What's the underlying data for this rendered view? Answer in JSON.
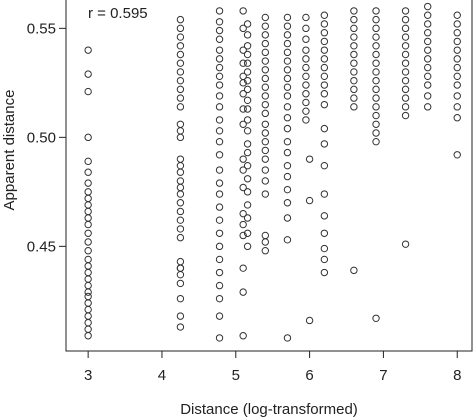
{
  "chart_data": {
    "type": "scatter",
    "title": "",
    "xlabel": "Distance (log-transformed)",
    "ylabel": "Apparent distance",
    "xlim": [
      2.7,
      8.2
    ],
    "ylim": [
      0.402,
      0.563
    ],
    "xticks": [
      3,
      4,
      5,
      6,
      7,
      8
    ],
    "yticks": [
      0.45,
      0.5,
      0.55
    ],
    "ytick_labels": [
      "0.45",
      "0.50",
      "0.55"
    ],
    "annotation": "r =  0.595",
    "grid": false,
    "series": [
      {
        "marker": "open-circle",
        "color": "#333333",
        "columns": [
          {
            "x": 3.0,
            "y": [
              0.54,
              0.529,
              0.521,
              0.5,
              0.489,
              0.484,
              0.479,
              0.475,
              0.472,
              0.469,
              0.466,
              0.463,
              0.46,
              0.456,
              0.452,
              0.448,
              0.444,
              0.441,
              0.438,
              0.435,
              0.432,
              0.429,
              0.427,
              0.424,
              0.421,
              0.418,
              0.415,
              0.412,
              0.409
            ]
          },
          {
            "x": 4.25,
            "y": [
              0.554,
              0.55,
              0.546,
              0.542,
              0.538,
              0.534,
              0.53,
              0.526,
              0.522,
              0.518,
              0.514,
              0.506,
              0.503,
              0.5,
              0.49,
              0.487,
              0.484,
              0.48,
              0.477,
              0.474,
              0.47,
              0.466,
              0.462,
              0.458,
              0.454,
              0.44,
              0.443,
              0.44,
              0.437,
              0.433,
              0.426,
              0.418,
              0.413
            ]
          },
          {
            "x": 4.78,
            "y": [
              0.558,
              0.553,
              0.549,
              0.545,
              0.54,
              0.536,
              0.532,
              0.528,
              0.524,
              0.519,
              0.514,
              0.508,
              0.503,
              0.498,
              0.492,
              0.485,
              0.479,
              0.474,
              0.468,
              0.462,
              0.456,
              0.45,
              0.444,
              0.438,
              0.432,
              0.426,
              0.418,
              0.408
            ]
          },
          {
            "x": 5.1,
            "y": [
              0.558,
              0.55,
              0.54,
              0.534,
              0.528,
              0.525,
              0.52,
              0.513,
              0.506,
              0.49,
              0.485,
              0.477,
              0.465,
              0.46,
              0.455,
              0.44,
              0.429,
              0.409
            ]
          },
          {
            "x": 5.16,
            "y": [
              0.552,
              0.547,
              0.542,
              0.538,
              0.534,
              0.53,
              0.526,
              0.522,
              0.517,
              0.513,
              0.508,
              0.503,
              0.497,
              0.493,
              0.487,
              0.481,
              0.475,
              0.469,
              0.463,
              0.456,
              0.45
            ]
          },
          {
            "x": 5.4,
            "y": [
              0.555,
              0.551,
              0.547,
              0.543,
              0.539,
              0.535,
              0.531,
              0.527,
              0.523,
              0.519,
              0.515,
              0.511,
              0.506,
              0.502,
              0.498,
              0.494,
              0.49,
              0.485,
              0.48,
              0.474,
              0.455,
              0.452,
              0.448
            ]
          },
          {
            "x": 5.7,
            "y": [
              0.555,
              0.551,
              0.547,
              0.543,
              0.539,
              0.535,
              0.531,
              0.527,
              0.523,
              0.519,
              0.514,
              0.509,
              0.504,
              0.498,
              0.493,
              0.487,
              0.482,
              0.476,
              0.47,
              0.463,
              0.453,
              0.408
            ]
          },
          {
            "x": 5.95,
            "y": [
              0.555,
              0.55,
              0.545,
              0.54,
              0.536,
              0.532,
              0.528,
              0.524,
              0.52,
              0.516,
              0.512,
              0.508
            ]
          },
          {
            "x": 6.0,
            "y": [
              0.49,
              0.471,
              0.416
            ]
          },
          {
            "x": 6.2,
            "y": [
              0.556,
              0.552,
              0.548,
              0.544,
              0.54,
              0.536,
              0.532,
              0.528,
              0.524,
              0.52,
              0.515,
              0.504,
              0.497,
              0.487,
              0.474,
              0.464,
              0.456,
              0.449,
              0.444,
              0.438
            ]
          },
          {
            "x": 6.6,
            "y": [
              0.558,
              0.554,
              0.55,
              0.546,
              0.542,
              0.538,
              0.534,
              0.53,
              0.526,
              0.522,
              0.518,
              0.514,
              0.439
            ]
          },
          {
            "x": 6.9,
            "y": [
              0.558,
              0.554,
              0.55,
              0.546,
              0.542,
              0.538,
              0.534,
              0.53,
              0.526,
              0.522,
              0.518,
              0.514,
              0.51,
              0.506,
              0.502,
              0.498,
              0.417
            ]
          },
          {
            "x": 7.3,
            "y": [
              0.558,
              0.554,
              0.55,
              0.546,
              0.542,
              0.538,
              0.534,
              0.53,
              0.526,
              0.522,
              0.518,
              0.514,
              0.51,
              0.451
            ]
          },
          {
            "x": 7.6,
            "y": [
              0.56,
              0.556,
              0.552,
              0.548,
              0.544,
              0.54,
              0.536,
              0.532,
              0.528,
              0.524,
              0.519,
              0.514
            ]
          },
          {
            "x": 8.0,
            "y": [
              0.556,
              0.552,
              0.548,
              0.544,
              0.54,
              0.536,
              0.532,
              0.528,
              0.524,
              0.519,
              0.514,
              0.509,
              0.492
            ]
          }
        ]
      }
    ]
  }
}
